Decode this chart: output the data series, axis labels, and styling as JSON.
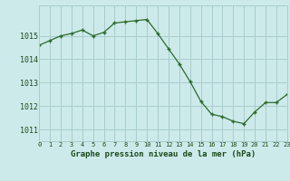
{
  "x": [
    0,
    1,
    2,
    3,
    4,
    5,
    6,
    7,
    8,
    9,
    10,
    11,
    12,
    13,
    14,
    15,
    16,
    17,
    18,
    19,
    20,
    21,
    22,
    23
  ],
  "y": [
    1014.6,
    1014.8,
    1015.0,
    1015.1,
    1015.25,
    1015.0,
    1015.15,
    1015.55,
    1015.6,
    1015.65,
    1015.7,
    1015.1,
    1014.45,
    1013.8,
    1013.05,
    1012.2,
    1011.65,
    1011.55,
    1011.35,
    1011.25,
    1011.75,
    1012.15,
    1012.15,
    1012.5
  ],
  "line_color": "#2d6a2d",
  "marker": "+",
  "bg_color": "#cdeaea",
  "grid_color": "#a8cccc",
  "xlabel": "Graphe pression niveau de la mer (hPa)",
  "xlabel_color": "#1a4a1a",
  "tick_color": "#1a4a1a",
  "ylim": [
    1010.5,
    1016.3
  ],
  "yticks": [
    1011,
    1012,
    1013,
    1014,
    1015
  ],
  "xticks": [
    0,
    1,
    2,
    3,
    4,
    5,
    6,
    7,
    8,
    9,
    10,
    11,
    12,
    13,
    14,
    15,
    16,
    17,
    18,
    19,
    20,
    21,
    22,
    23
  ],
  "xlim": [
    0,
    23
  ]
}
